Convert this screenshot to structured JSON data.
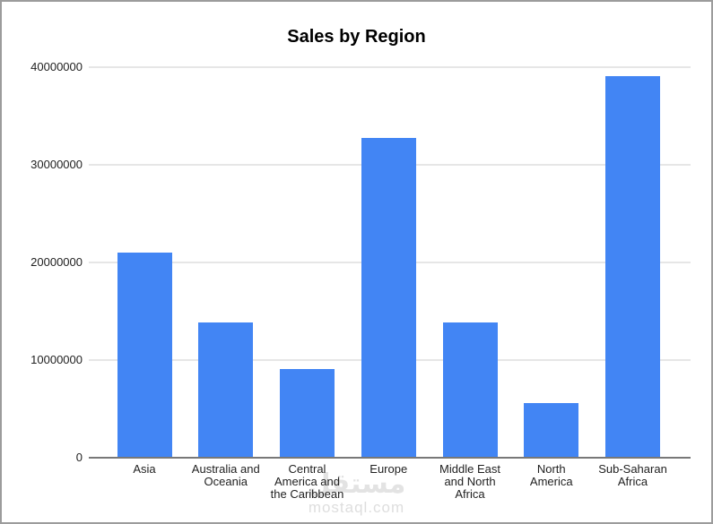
{
  "watermark": {
    "logo_text": "مستقل",
    "domain": "mostaql.com"
  },
  "colors": {
    "bar": "#4285F4",
    "gridline": "#e6e6e6",
    "baseline": "#787878",
    "frame_border": "#9c9c9c",
    "text": "#1f1f1f",
    "watermark": "#e3e3e3"
  },
  "chart_data": {
    "type": "bar",
    "title": "Sales by Region",
    "xlabel": "",
    "ylabel": "",
    "categories": [
      "Asia",
      "Australia and Oceania",
      "Central America and the Caribbean",
      "Europe",
      "Middle East and North Africa",
      "North America",
      "Sub-Saharan Africa"
    ],
    "category_lines": [
      [
        "Asia"
      ],
      [
        "Australia and",
        "Oceania"
      ],
      [
        "Central",
        "America and",
        "the Caribbean"
      ],
      [
        "Europe"
      ],
      [
        "Middle East",
        "and North",
        "Africa"
      ],
      [
        "North",
        "America"
      ],
      [
        "Sub-Saharan",
        "Africa"
      ]
    ],
    "values": [
      21000000,
      13900000,
      9100000,
      32800000,
      13900000,
      5600000,
      39100000
    ],
    "y_ticks": [
      0,
      10000000,
      20000000,
      30000000,
      40000000
    ],
    "y_tick_labels": [
      "0",
      "10000000",
      "20000000",
      "30000000",
      "40000000"
    ],
    "ylim": [
      0,
      40000000
    ],
    "grid": true,
    "legend": "none",
    "bar_color": "#4285F4"
  }
}
